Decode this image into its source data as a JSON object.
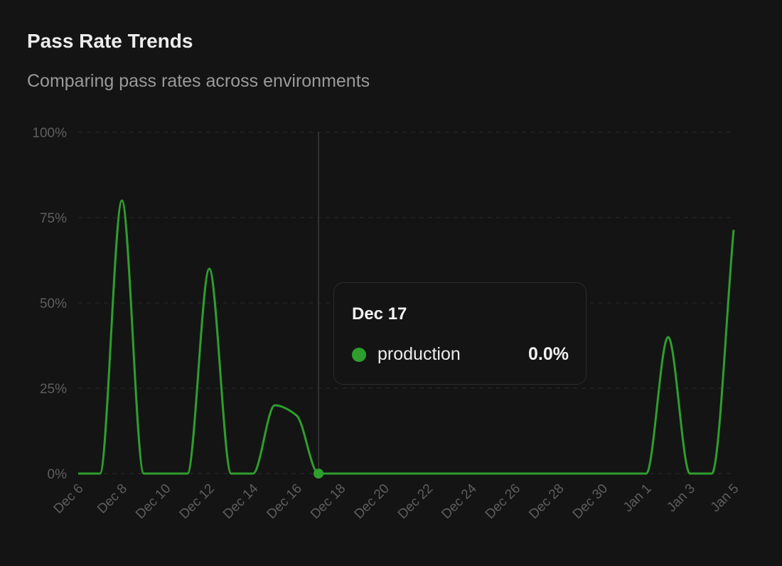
{
  "header": {
    "title": "Pass Rate Trends",
    "subtitle": "Comparing pass rates across environments"
  },
  "tooltip": {
    "date": "Dec 17",
    "series": "production",
    "value": "0.0%"
  },
  "colors": {
    "production": "#2e9e2e",
    "background": "#141414"
  },
  "chart_data": {
    "type": "line",
    "title": "Pass Rate Trends",
    "subtitle": "Comparing pass rates across environments",
    "x": [
      "Dec 6",
      "Dec 7",
      "Dec 8",
      "Dec 9",
      "Dec 10",
      "Dec 11",
      "Dec 12",
      "Dec 13",
      "Dec 14",
      "Dec 15",
      "Dec 16",
      "Dec 17",
      "Dec 18",
      "Dec 19",
      "Dec 20",
      "Dec 21",
      "Dec 22",
      "Dec 23",
      "Dec 24",
      "Dec 25",
      "Dec 26",
      "Dec 27",
      "Dec 28",
      "Dec 29",
      "Dec 30",
      "Dec 31",
      "Jan 1",
      "Jan 2",
      "Jan 3",
      "Jan 4",
      "Jan 5"
    ],
    "x_tick_labels": [
      "Dec 6",
      "Dec 8",
      "Dec 10",
      "Dec 12",
      "Dec 14",
      "Dec 16",
      "Dec 18",
      "Dec 20",
      "Dec 22",
      "Dec 24",
      "Dec 26",
      "Dec 28",
      "Dec 30",
      "Jan 1",
      "Jan 3",
      "Jan 5"
    ],
    "series": [
      {
        "name": "production",
        "color": "#2e9e2e",
        "values": [
          0,
          0,
          80,
          0,
          0,
          0,
          60,
          0,
          0,
          20,
          17,
          0,
          0,
          0,
          0,
          0,
          0,
          0,
          0,
          0,
          0,
          0,
          0,
          0,
          0,
          0,
          0,
          40,
          0,
          0,
          71.4
        ]
      }
    ],
    "y_ticks": [
      "0%",
      "25%",
      "50%",
      "75%",
      "100%"
    ],
    "ylim": [
      0,
      100
    ],
    "grid": true,
    "highlighted_point": "Dec 17",
    "legend": "none"
  }
}
